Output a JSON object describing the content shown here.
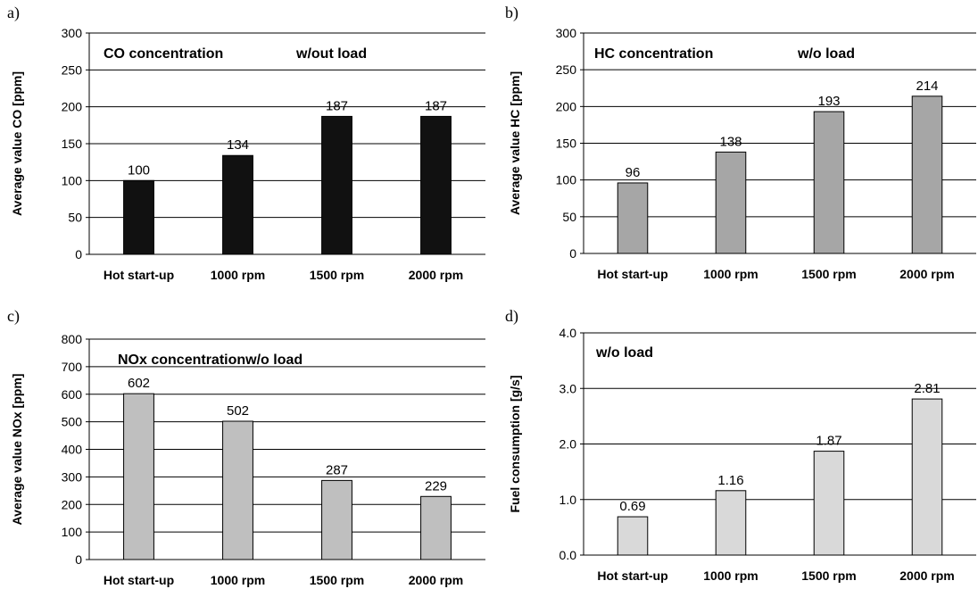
{
  "chart_data": [
    {
      "panel": "a)",
      "type": "bar",
      "title": "CO concentration",
      "subtitle": "w/out load",
      "ylabel": "Average value CO [ppm]",
      "xlabel": "",
      "categories": [
        "Hot start-up",
        "1000 rpm",
        "1500 rpm",
        "2000 rpm"
      ],
      "values": [
        100,
        134,
        187,
        187
      ],
      "value_labels": [
        "100",
        "134",
        "187",
        "187"
      ],
      "ylim": [
        0,
        300
      ],
      "yticks": [
        "0",
        "50",
        "100",
        "150",
        "200",
        "250",
        "300"
      ],
      "bar_color": "#111111",
      "grid": true
    },
    {
      "panel": "b)",
      "type": "bar",
      "title": "HC concentration",
      "subtitle": "w/o load",
      "ylabel": "Average value HC [ppm]",
      "xlabel": "",
      "categories": [
        "Hot start-up",
        "1000 rpm",
        "1500 rpm",
        "2000 rpm"
      ],
      "values": [
        96,
        138,
        193,
        214
      ],
      "value_labels": [
        "96",
        "138",
        "193",
        "214"
      ],
      "ylim": [
        0,
        300
      ],
      "yticks": [
        "0",
        "50",
        "100",
        "150",
        "200",
        "250",
        "300"
      ],
      "bar_color": "#a6a6a6",
      "grid": true
    },
    {
      "panel": "c)",
      "type": "bar",
      "title": "NOx concentrationw/o load",
      "subtitle": "",
      "ylabel": "Average value NOx [ppm]",
      "xlabel": "",
      "categories": [
        "Hot start-up",
        "1000 rpm",
        "1500 rpm",
        "2000 rpm"
      ],
      "values": [
        602,
        502,
        287,
        229
      ],
      "value_labels": [
        "602",
        "502",
        "287",
        "229"
      ],
      "ylim": [
        0,
        800
      ],
      "yticks": [
        "0",
        "100",
        "200",
        "300",
        "400",
        "500",
        "600",
        "700",
        "800"
      ],
      "bar_color": "#bfbfbf",
      "grid": true
    },
    {
      "panel": "d)",
      "type": "bar",
      "title": "w/o load",
      "subtitle": "",
      "ylabel": "Fuel consumption [g/s]",
      "xlabel": "",
      "categories": [
        "Hot start-up",
        "1000 rpm",
        "1500 rpm",
        "2000 rpm"
      ],
      "values": [
        0.69,
        1.16,
        1.87,
        2.81
      ],
      "value_labels": [
        "0.69",
        "1.16",
        "1.87",
        "2.81"
      ],
      "ylim": [
        0,
        4
      ],
      "yticks": [
        "0.0",
        "1.0",
        "2.0",
        "3.0",
        "4.0"
      ],
      "bar_color": "#d9d9d9",
      "grid": true
    }
  ]
}
